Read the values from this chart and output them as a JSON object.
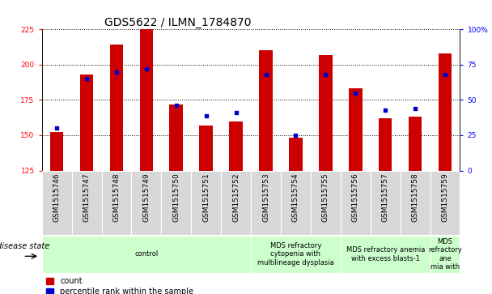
{
  "title": "GDS5622 / ILMN_1784870",
  "samples": [
    "GSM1515746",
    "GSM1515747",
    "GSM1515748",
    "GSM1515749",
    "GSM1515750",
    "GSM1515751",
    "GSM1515752",
    "GSM1515753",
    "GSM1515754",
    "GSM1515755",
    "GSM1515756",
    "GSM1515757",
    "GSM1515758",
    "GSM1515759"
  ],
  "counts": [
    152,
    193,
    214,
    225,
    172,
    157,
    160,
    210,
    148,
    207,
    183,
    162,
    163,
    208
  ],
  "percentiles": [
    30,
    65,
    70,
    72,
    46,
    39,
    41,
    68,
    25,
    68,
    55,
    43,
    44,
    68
  ],
  "ylim_left": [
    125,
    225
  ],
  "ylim_right": [
    0,
    100
  ],
  "yticks_left": [
    125,
    150,
    175,
    200,
    225
  ],
  "yticks_right": [
    0,
    25,
    50,
    75,
    100
  ],
  "bar_color": "#cc0000",
  "dot_color": "#0000cc",
  "bar_width": 0.45,
  "groups": [
    {
      "label": "control",
      "start": 0,
      "end": 7
    },
    {
      "label": "MDS refractory\ncytopenia with\nmultilineage dysplasia",
      "start": 7,
      "end": 10
    },
    {
      "label": "MDS refractory anemia\nwith excess blasts-1",
      "start": 10,
      "end": 13
    },
    {
      "label": "MDS\nrefractory\nane\nmia with",
      "start": 13,
      "end": 14
    }
  ],
  "group_color": "#ccffcc",
  "sample_bg_color": "#d8d8d8",
  "disease_state_label": "disease state",
  "legend_count_label": "count",
  "legend_percentile_label": "percentile rank within the sample",
  "title_fontsize": 10,
  "tick_fontsize": 6.5,
  "group_fontsize": 6,
  "legend_fontsize": 7
}
